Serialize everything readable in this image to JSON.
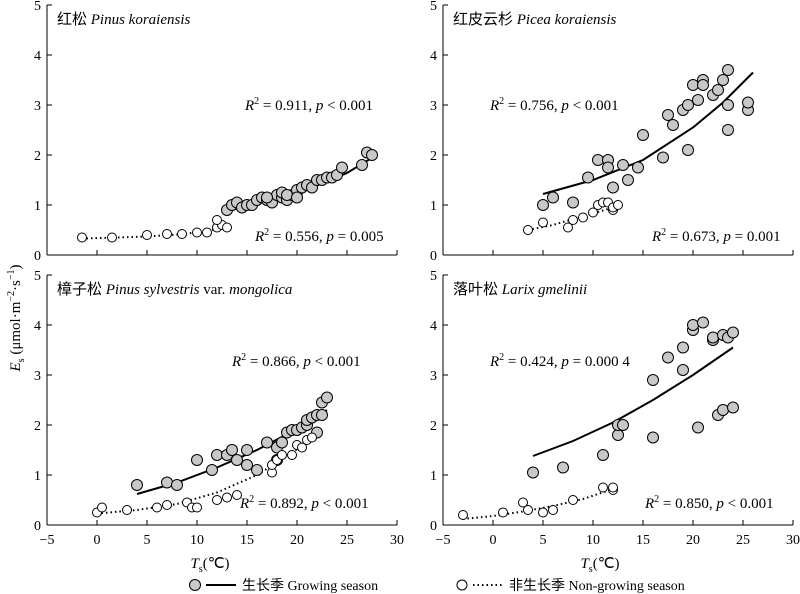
{
  "figure": {
    "ylabel": "E",
    "ylabel_sub": "s",
    "ylabel_unit": " (μmol·m",
    "ylabel_exp1": "−2",
    "ylabel_mid": "·s",
    "ylabel_exp2": "−1",
    "ylabel_end": ")",
    "xlabel": "T",
    "xlabel_sub": "s",
    "xlabel_unit": "(℃)",
    "legend": {
      "growing_cn": "生长季",
      "growing_en": "Growing season",
      "nongrowing_cn": "非生长季",
      "nongrowing_en": "Non-growing season"
    },
    "colors": {
      "growing_fill": "#c8c8c8",
      "nongrowing_fill": "#ffffff",
      "stroke": "#000000"
    }
  },
  "chart_data": [
    {
      "type": "scatter",
      "title_cn": "红松",
      "title_latin": "Pinus koraiensis",
      "title_extra": "",
      "x_ticks": [
        "−5",
        "0",
        "5",
        "10",
        "15",
        "20",
        "25",
        "30"
      ],
      "y_ticks": [
        "0",
        "1",
        "2",
        "3",
        "4",
        "5"
      ],
      "xlim": [
        -5,
        30
      ],
      "ylim": [
        0,
        5
      ],
      "series": [
        {
          "name": "Growing season",
          "points": [
            [
              13,
              0.9
            ],
            [
              13.5,
              1.0
            ],
            [
              14,
              1.05
            ],
            [
              14.5,
              0.95
            ],
            [
              15,
              1.0
            ],
            [
              15.5,
              1.0
            ],
            [
              16,
              1.1
            ],
            [
              16.5,
              1.15
            ],
            [
              17,
              1.1
            ],
            [
              17.5,
              1.05
            ],
            [
              18,
              1.2
            ],
            [
              18.5,
              1.15
            ],
            [
              19,
              1.1
            ],
            [
              19.5,
              1.2
            ],
            [
              20,
              1.25
            ],
            [
              20,
              1.3
            ],
            [
              20.5,
              1.35
            ],
            [
              21,
              1.4
            ],
            [
              21.5,
              1.35
            ],
            [
              22,
              1.5
            ],
            [
              22.5,
              1.5
            ],
            [
              23,
              1.55
            ],
            [
              23.5,
              1.55
            ],
            [
              24,
              1.6
            ],
            [
              24.5,
              1.75
            ],
            [
              26.5,
              1.8
            ],
            [
              27,
              2.05
            ],
            [
              27.5,
              2.0
            ],
            [
              18.5,
              1.25
            ],
            [
              19,
              1.2
            ],
            [
              20,
              1.15
            ],
            [
              17,
              1.15
            ]
          ],
          "fit_curve": [
            [
              12.5,
              0.85
            ],
            [
              15,
              0.98
            ],
            [
              17.5,
              1.1
            ],
            [
              20,
              1.25
            ],
            [
              22.5,
              1.43
            ],
            [
              25,
              1.64
            ],
            [
              27.8,
              1.98
            ]
          ],
          "stat_r2": "0.911",
          "stat_p": "< 0.001"
        },
        {
          "name": "Non-growing season",
          "points": [
            [
              -1.5,
              0.35
            ],
            [
              1.5,
              0.35
            ],
            [
              5,
              0.4
            ],
            [
              7,
              0.42
            ],
            [
              8.5,
              0.42
            ],
            [
              10,
              0.45
            ],
            [
              11,
              0.45
            ],
            [
              12,
              0.55
            ],
            [
              12.5,
              0.6
            ],
            [
              13,
              0.55
            ],
            [
              12,
              0.7
            ]
          ],
          "fit_curve": [
            [
              -1.5,
              0.33
            ],
            [
              2,
              0.35
            ],
            [
              5,
              0.37
            ],
            [
              8,
              0.41
            ],
            [
              10,
              0.45
            ],
            [
              12,
              0.52
            ],
            [
              13,
              0.56
            ]
          ],
          "stat_r2": "0.556",
          "stat_p": "= 0.005"
        }
      ]
    },
    {
      "type": "scatter",
      "title_cn": "红皮云杉",
      "title_latin": "Picea koraiensis",
      "title_extra": "",
      "x_ticks": [
        "−5",
        "0",
        "5",
        "10",
        "15",
        "20",
        "25",
        "30"
      ],
      "y_ticks": [
        "0",
        "1",
        "2",
        "3",
        "4",
        "5"
      ],
      "xlim": [
        -5,
        30
      ],
      "ylim": [
        0,
        5
      ],
      "series": [
        {
          "name": "Growing season",
          "points": [
            [
              5,
              1.0
            ],
            [
              6,
              1.15
            ],
            [
              8,
              1.05
            ],
            [
              9.5,
              1.55
            ],
            [
              10.5,
              1.9
            ],
            [
              11.5,
              1.9
            ],
            [
              11.5,
              1.75
            ],
            [
              12,
              1.35
            ],
            [
              13,
              1.8
            ],
            [
              13.5,
              1.5
            ],
            [
              14.5,
              1.75
            ],
            [
              15,
              2.4
            ],
            [
              17,
              1.95
            ],
            [
              17.5,
              2.8
            ],
            [
              18,
              2.6
            ],
            [
              19,
              2.9
            ],
            [
              19.5,
              2.1
            ],
            [
              19.5,
              3.0
            ],
            [
              20,
              3.4
            ],
            [
              20.5,
              3.1
            ],
            [
              21,
              3.5
            ],
            [
              21,
              3.4
            ],
            [
              22,
              3.2
            ],
            [
              22.5,
              3.3
            ],
            [
              23,
              3.5
            ],
            [
              23.5,
              3.7
            ],
            [
              23.5,
              2.5
            ],
            [
              23.5,
              3.0
            ],
            [
              25.5,
              2.9
            ],
            [
              25.5,
              3.05
            ]
          ],
          "fit_curve": [
            [
              5,
              1.22
            ],
            [
              10,
              1.5
            ],
            [
              15,
              1.9
            ],
            [
              20,
              2.55
            ],
            [
              23,
              3.05
            ],
            [
              26,
              3.65
            ]
          ],
          "stat_r2": "0.756",
          "stat_p": "< 0.001"
        },
        {
          "name": "Non-growing season",
          "points": [
            [
              3.5,
              0.5
            ],
            [
              5,
              0.65
            ],
            [
              7.5,
              0.55
            ],
            [
              8,
              0.7
            ],
            [
              9,
              0.75
            ],
            [
              10,
              0.85
            ],
            [
              10.5,
              1.0
            ],
            [
              11,
              1.05
            ],
            [
              11.5,
              1.05
            ],
            [
              12,
              0.9
            ],
            [
              12,
              0.95
            ],
            [
              12.5,
              1.0
            ]
          ],
          "fit_curve": [
            [
              3.5,
              0.5
            ],
            [
              6,
              0.6
            ],
            [
              8,
              0.72
            ],
            [
              10,
              0.83
            ],
            [
              12,
              0.95
            ]
          ],
          "stat_r2": "0.673",
          "stat_p": "= 0.001"
        }
      ]
    },
    {
      "type": "scatter",
      "title_cn": "樟子松",
      "title_latin": "Pinus sylvestris",
      "title_extra": " var. ",
      "title_latin2": "mongolica",
      "x_ticks": [
        "−5",
        "0",
        "5",
        "10",
        "15",
        "20",
        "25",
        "30"
      ],
      "y_ticks": [
        "0",
        "1",
        "2",
        "3",
        "4",
        "5"
      ],
      "xlim": [
        -5,
        30
      ],
      "ylim": [
        0,
        5
      ],
      "series": [
        {
          "name": "Growing season",
          "points": [
            [
              4,
              0.8
            ],
            [
              7,
              0.85
            ],
            [
              8,
              0.8
            ],
            [
              10,
              1.3
            ],
            [
              11.5,
              1.1
            ],
            [
              12,
              1.4
            ],
            [
              13,
              1.4
            ],
            [
              13.5,
              1.5
            ],
            [
              14,
              1.3
            ],
            [
              15,
              1.5
            ],
            [
              15,
              1.2
            ],
            [
              16,
              1.1
            ],
            [
              17,
              1.65
            ],
            [
              18,
              1.55
            ],
            [
              18,
              1.3
            ],
            [
              18.5,
              1.65
            ],
            [
              19,
              1.85
            ],
            [
              19.5,
              1.9
            ],
            [
              20,
              1.9
            ],
            [
              20.5,
              1.95
            ],
            [
              21,
              2.0
            ],
            [
              21,
              2.1
            ],
            [
              21.5,
              2.15
            ],
            [
              22,
              2.2
            ],
            [
              22,
              1.85
            ],
            [
              22.5,
              2.2
            ],
            [
              22.5,
              2.45
            ],
            [
              23,
              2.55
            ]
          ],
          "fit_curve": [
            [
              4,
              0.62
            ],
            [
              8,
              0.85
            ],
            [
              12,
              1.15
            ],
            [
              16,
              1.5
            ],
            [
              20,
              1.92
            ],
            [
              23,
              2.3
            ]
          ],
          "stat_r2": "0.866",
          "stat_p": "< 0.001"
        },
        {
          "name": "Non-growing season",
          "points": [
            [
              0,
              0.25
            ],
            [
              0.5,
              0.35
            ],
            [
              3,
              0.3
            ],
            [
              6,
              0.35
            ],
            [
              7,
              0.4
            ],
            [
              9,
              0.45
            ],
            [
              9.5,
              0.35
            ],
            [
              10,
              0.35
            ],
            [
              12,
              0.5
            ],
            [
              13,
              0.55
            ],
            [
              14,
              0.6
            ],
            [
              17.5,
              1.05
            ],
            [
              17.5,
              1.2
            ],
            [
              18,
              1.3
            ],
            [
              18.5,
              1.4
            ],
            [
              19.5,
              1.4
            ],
            [
              20,
              1.6
            ],
            [
              20.5,
              1.55
            ],
            [
              21,
              1.7
            ],
            [
              21.5,
              1.75
            ]
          ],
          "fit_curve": [
            [
              0,
              0.23
            ],
            [
              4,
              0.3
            ],
            [
              8,
              0.42
            ],
            [
              12,
              0.65
            ],
            [
              16,
              1.0
            ],
            [
              19,
              1.38
            ],
            [
              21.5,
              1.72
            ]
          ],
          "stat_r2": "0.892",
          "stat_p": "< 0.001"
        }
      ]
    },
    {
      "type": "scatter",
      "title_cn": "落叶松",
      "title_latin": "Larix gmelinii",
      "title_extra": "",
      "x_ticks": [
        "−5",
        "0",
        "5",
        "10",
        "15",
        "20",
        "25",
        "30"
      ],
      "y_ticks": [
        "0",
        "1",
        "2",
        "3",
        "4",
        "5"
      ],
      "xlim": [
        -5,
        30
      ],
      "ylim": [
        0,
        5
      ],
      "series": [
        {
          "name": "Growing season",
          "points": [
            [
              4,
              1.05
            ],
            [
              7,
              1.15
            ],
            [
              11,
              1.4
            ],
            [
              12.5,
              1.8
            ],
            [
              12.5,
              2.0
            ],
            [
              13,
              2.0
            ],
            [
              16,
              1.75
            ],
            [
              16,
              2.9
            ],
            [
              17.5,
              3.35
            ],
            [
              19,
              3.1
            ],
            [
              19,
              3.55
            ],
            [
              20,
              3.9
            ],
            [
              20,
              4.0
            ],
            [
              20.5,
              1.95
            ],
            [
              21,
              4.05
            ],
            [
              22,
              3.7
            ],
            [
              22,
              3.75
            ],
            [
              22.5,
              2.2
            ],
            [
              23,
              2.3
            ],
            [
              23,
              3.8
            ],
            [
              23.5,
              3.75
            ],
            [
              24,
              3.85
            ],
            [
              24,
              2.35
            ]
          ],
          "fit_curve": [
            [
              4,
              1.38
            ],
            [
              8,
              1.68
            ],
            [
              12,
              2.05
            ],
            [
              16,
              2.5
            ],
            [
              20,
              3.0
            ],
            [
              24,
              3.55
            ]
          ],
          "stat_r2": "0.424",
          "stat_p": "= 0.000 4"
        },
        {
          "name": "Non-growing season",
          "points": [
            [
              -3,
              0.2
            ],
            [
              1,
              0.25
            ],
            [
              3,
              0.45
            ],
            [
              3.5,
              0.3
            ],
            [
              5,
              0.25
            ],
            [
              6,
              0.3
            ],
            [
              8,
              0.5
            ],
            [
              11,
              0.75
            ],
            [
              12,
              0.7
            ],
            [
              12,
              0.75
            ]
          ],
          "fit_curve": [
            [
              -3,
              0.12
            ],
            [
              0,
              0.18
            ],
            [
              3,
              0.27
            ],
            [
              6,
              0.38
            ],
            [
              9,
              0.52
            ],
            [
              12,
              0.72
            ]
          ],
          "stat_r2": "0.850",
          "stat_p": "< 0.001"
        }
      ]
    }
  ]
}
